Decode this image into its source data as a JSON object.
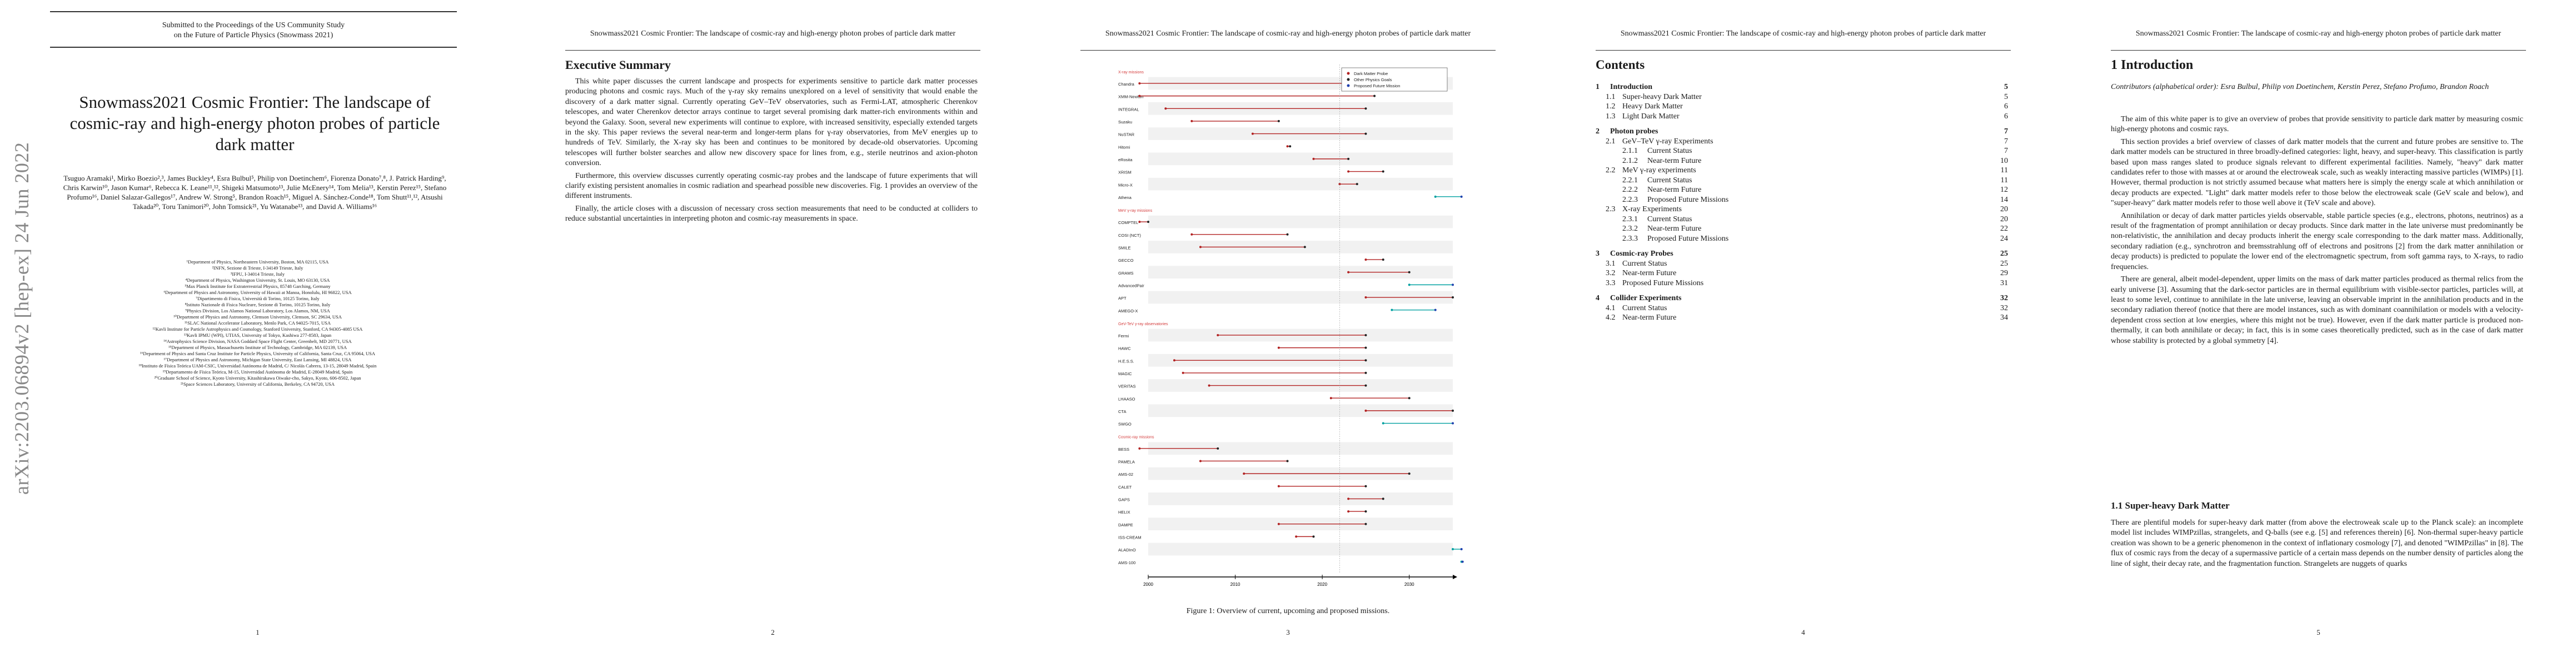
{
  "page1": {
    "arxiv_id": "arXiv:2203.06894v2  [hep-ex]  24 Jun 2022",
    "submitted_lines": [
      "Submitted to the Proceedings of the US Community Study",
      "on the Future of Particle Physics (Snowmass 2021)"
    ],
    "title": "Snowmass2021 Cosmic Frontier: The landscape of cosmic-ray and high-energy photon probes of particle dark matter",
    "authors": "Tsuguo Aramaki¹, Mirko Boezio²,³, James Buckley⁴, Esra Bulbul⁵, Philip von Doetinchem⁶, Fiorenza Donato⁷,⁸, J. Patrick Harding⁹, Chris Karwin¹⁰, Jason Kumar⁶, Rebecca K. Leane¹¹,¹², Shigeki Matsumoto¹³, Julie McEnery¹⁴, Tom Melia¹³, Kerstin Perez¹⁵, Stefano Profumo¹⁶, Daniel Salazar-Gallegos¹⁷, Andrew W. Strong⁵, Brandon Roach¹⁵, Miguel A. Sánchez-Conde¹⁸, Tom Shutt¹¹,¹², Atsushi Takada²⁰, Toru Tanimori²⁰, John Tomsick²¹, Yu Watanabe¹³, and David A. Williams¹⁶",
    "affiliations": [
      "¹Department of Physics, Northeastern University, Boston, MA 02115, USA",
      "²INFN, Sezione di Trieste, I-34149 Trieste, Italy",
      "³IFPU, I-34014 Trieste, Italy",
      "⁴Department of Physics, Washington University, St. Louis, MO 63130, USA",
      "⁵Max Planck Institute for Extraterrestrial Physics, 85748 Garching, Germany",
      "⁶Department of Physics and Astronomy, University of Hawaii at Manoa, Honolulu, HI 96822, USA",
      "⁷Dipartimento di Fisica, Università di Torino, 10125 Torino, Italy",
      "⁸Istituto Nazionale di Fisica Nucleare, Sezione di Torino, 10125 Torino, Italy",
      "⁹Physics Division, Los Alamos National Laboratory, Los Alamos, NM, USA",
      "¹⁰Department of Physics and Astronomy, Clemson University, Clemson, SC 29634, USA",
      "¹¹SLAC National Accelerator Laboratory, Menlo Park, CA 94025-7015, USA",
      "¹²Kavli Institute for Particle Astrophysics and Cosmology, Stanford University, Stanford, CA 94305-4085 USA",
      "¹³Kavli IPMU (WPI), UTIAS, University of Tokyo, Kashiwa 277-8583, Japan",
      "¹⁴Astrophysics Science Division, NASA Goddard Space Flight Center, Greenbelt, MD 20771, USA",
      "¹⁵Department of Physics, Massachusetts Institute of Technology, Cambridge, MA 02139, USA",
      "¹⁶Department of Physics and Santa Cruz Institute for Particle Physics, University of California, Santa Cruz, CA 95064, USA",
      "¹⁷Department of Physics and Astronomy, Michigan State University, East Lansing, MI 48824, USA",
      "¹⁸Instituto de Física Teórica UAM-CSIC, Universidad Autónoma de Madrid, C/ Nicolás Cabrera, 13-15, 28049 Madrid, Spain",
      "¹⁹Departamento de Física Teórica, M-15, Universidad Autónoma de Madrid, E-28049 Madrid, Spain",
      "²⁰Graduate School of Science, Kyoto University, Kitashirakawa Oiwake-cho, Sakyo, Kyoto, 606-8502, Japan",
      "²¹Space Sciences Laboratory, University of California, Berkeley, CA 94720, USA"
    ],
    "page_number": "1"
  },
  "running_head": "Snowmass2021 Cosmic Frontier: The landscape of cosmic-ray and high-energy photon probes of particle dark matter",
  "page2": {
    "heading": "Executive Summary",
    "paragraphs": [
      "This white paper discusses the current landscape and prospects for experiments sensitive to particle dark matter processes producing photons and cosmic rays. Much of the γ-ray sky remains unexplored on a level of sensitivity that would enable the discovery of a dark matter signal. Currently operating GeV–TeV observatories, such as Fermi-LAT, atmospheric Cherenkov telescopes, and water Cherenkov detector arrays continue to target several promising dark matter-rich environments within and beyond the Galaxy. Soon, several new experiments will continue to explore, with increased sensitivity, especially extended targets in the sky. This paper reviews the several near-term and longer-term plans for γ-ray observatories, from MeV energies up to hundreds of TeV. Similarly, the X-ray sky has been and continues to be monitored by decade-old observatories. Upcoming telescopes will further bolster searches and allow new discovery space for lines from, e.g., sterile neutrinos and axion-photon conversion.",
      "Furthermore, this overview discusses currently operating cosmic-ray probes and the landscape of future experiments that will clarify existing persistent anomalies in cosmic radiation and spearhead possible new discoveries. Fig. 1 provides an overview of the different instruments.",
      "Finally, the article closes with a discussion of necessary cross section measurements that need to be conducted at colliders to reduce substantial uncertainties in interpreting photon and cosmic-ray measurements in space."
    ],
    "page_number": "2"
  },
  "page3": {
    "caption": "Figure 1:   Overview of current, upcoming and proposed missions.",
    "page_number": "3"
  },
  "chart_data": {
    "type": "gantt",
    "title": "",
    "xlim": [
      2000,
      2035
    ],
    "xticks": [
      "2000",
      "2010",
      "2020",
      "2030"
    ],
    "legend": [
      "Dark Matter Probe",
      "Other Physics Goals",
      "Proposed Future Mission"
    ],
    "groups": [
      {
        "label": "X-ray missions",
        "items": [
          {
            "name": "Chandra",
            "start": 1999,
            "end": 2025
          },
          {
            "name": "XMM-Newton",
            "start": 1999,
            "end": 2026
          },
          {
            "name": "INTEGRAL",
            "start": 2002,
            "end": 2025
          },
          {
            "name": "Suzaku",
            "start": 2005,
            "end": 2015
          },
          {
            "name": "NuSTAR",
            "start": 2012,
            "end": 2025
          },
          {
            "name": "Hitomi",
            "start": 2016,
            "end": 2016.3
          },
          {
            "name": "eRosita",
            "start": 2019,
            "end": 2023
          },
          {
            "name": "XRISM",
            "start": 2023,
            "end": 2027
          },
          {
            "name": "Micro-X",
            "start": 2022,
            "end": 2024
          },
          {
            "name": "Athena",
            "start": 2033,
            "end": 2037
          }
        ]
      },
      {
        "label": "MeV γ-ray missions",
        "items": [
          {
            "name": "COMPTEL",
            "start": 1991,
            "end": 2000
          },
          {
            "name": "COSI (NCT)",
            "start": 2005,
            "end": 2016
          },
          {
            "name": "SMILE",
            "start": 2006,
            "end": 2018
          },
          {
            "name": "GECCO",
            "start": 2025,
            "end": 2027
          },
          {
            "name": "GRAMS",
            "start": 2023,
            "end": 2030
          },
          {
            "name": "AdvancedPair",
            "start": 2030,
            "end": 2035
          },
          {
            "name": "APT",
            "start": 2025,
            "end": 2035
          },
          {
            "name": "AMEGO-X",
            "start": 2028,
            "end": 2033
          }
        ]
      },
      {
        "label": "GeV-TeV γ-ray observatories",
        "items": [
          {
            "name": "Fermi",
            "start": 2008,
            "end": 2025
          },
          {
            "name": "HAWC",
            "start": 2015,
            "end": 2025
          },
          {
            "name": "H.E.S.S.",
            "start": 2003,
            "end": 2025
          },
          {
            "name": "MAGIC",
            "start": 2004,
            "end": 2025
          },
          {
            "name": "VERITAS",
            "start": 2007,
            "end": 2025
          },
          {
            "name": "LHAASO",
            "start": 2021,
            "end": 2030
          },
          {
            "name": "CTA",
            "start": 2025,
            "end": 2035
          },
          {
            "name": "SWGO",
            "start": 2027,
            "end": 2035
          }
        ]
      },
      {
        "label": "Cosmic-ray missions",
        "items": [
          {
            "name": "BESS",
            "start": 1993,
            "end": 2008
          },
          {
            "name": "PAMELA",
            "start": 2006,
            "end": 2016
          },
          {
            "name": "AMS-02",
            "start": 2011,
            "end": 2030
          },
          {
            "name": "CALET",
            "start": 2015,
            "end": 2025
          },
          {
            "name": "GAPS",
            "start": 2023,
            "end": 2027
          },
          {
            "name": "HELIX",
            "start": 2023,
            "end": 2025
          },
          {
            "name": "DAMPE",
            "start": 2015,
            "end": 2025
          },
          {
            "name": "ISS-CREAM",
            "start": 2017,
            "end": 2019
          },
          {
            "name": "ALADInO",
            "start": 2035,
            "end": 2040
          },
          {
            "name": "AMS-100",
            "start": 2039,
            "end": 2045
          }
        ]
      }
    ]
  },
  "page4": {
    "heading": "Contents",
    "entries": [
      {
        "level": 0,
        "num": "1",
        "label": "Introduction",
        "page": "5"
      },
      {
        "level": 1,
        "num": "1.1",
        "label": "Super-heavy Dark Matter",
        "page": "5"
      },
      {
        "level": 1,
        "num": "1.2",
        "label": "Heavy Dark Matter",
        "page": "6"
      },
      {
        "level": 1,
        "num": "1.3",
        "label": "Light Dark Matter",
        "page": "6"
      },
      {
        "level": 0,
        "num": "2",
        "label": "Photon probes",
        "page": "7"
      },
      {
        "level": 1,
        "num": "2.1",
        "label": "GeV–TeV γ-ray Experiments",
        "page": "7"
      },
      {
        "level": 2,
        "num": "2.1.1",
        "label": "Current Status",
        "page": "7"
      },
      {
        "level": 2,
        "num": "2.1.2",
        "label": "Near-term Future",
        "page": "10"
      },
      {
        "level": 1,
        "num": "2.2",
        "label": "MeV γ-ray experiments",
        "page": "11"
      },
      {
        "level": 2,
        "num": "2.2.1",
        "label": "Current Status",
        "page": "11"
      },
      {
        "level": 2,
        "num": "2.2.2",
        "label": "Near-term Future",
        "page": "12"
      },
      {
        "level": 2,
        "num": "2.2.3",
        "label": "Proposed Future Missions",
        "page": "14"
      },
      {
        "level": 1,
        "num": "2.3",
        "label": "X-ray Experiments",
        "page": "20"
      },
      {
        "level": 2,
        "num": "2.3.1",
        "label": "Current Status",
        "page": "20"
      },
      {
        "level": 2,
        "num": "2.3.2",
        "label": "Near-term Future",
        "page": "22"
      },
      {
        "level": 2,
        "num": "2.3.3",
        "label": "Proposed Future Missions",
        "page": "24"
      },
      {
        "level": 0,
        "num": "3",
        "label": "Cosmic-ray Probes",
        "page": "25"
      },
      {
        "level": 1,
        "num": "3.1",
        "label": "Current Status",
        "page": "25"
      },
      {
        "level": 1,
        "num": "3.2",
        "label": "Near-term Future",
        "page": "29"
      },
      {
        "level": 1,
        "num": "3.3",
        "label": "Proposed Future Missions",
        "page": "31"
      },
      {
        "level": 0,
        "num": "4",
        "label": "Collider Experiments",
        "page": "32"
      },
      {
        "level": 1,
        "num": "4.1",
        "label": "Current Status",
        "page": "32"
      },
      {
        "level": 1,
        "num": "4.2",
        "label": "Near-term Future",
        "page": "34"
      }
    ],
    "page_number": "4"
  },
  "page5": {
    "heading": "1   Introduction",
    "contributors": "Contributors (alphabetical order): Esra Bulbul, Philip von Doetinchem, Kerstin Perez, Stefano Profumo, Brandon Roach",
    "paragraphs": [
      "The aim of this white paper is to give an overview of probes that provide sensitivity to particle dark matter by measuring cosmic high-energy photons and cosmic rays.",
      "This section provides a brief overview of classes of dark matter models that the current and future probes are sensitive to. The dark matter models can be structured in three broadly-defined categories: light, heavy, and super-heavy. This classification is partly based upon mass ranges slated to produce signals relevant to different experimental facilities. Namely, \"heavy\" dark matter candidates refer to those with masses at or around the electroweak scale, such as weakly interacting massive particles (WIMPs) [1]. However, thermal production is not strictly assumed because what matters here is simply the energy scale at which annihilation or decay products are expected. \"Light\" dark matter models refer to those below the electroweak scale (GeV scale and below), and \"super-heavy\" dark matter models refer to those well above it (TeV scale and above).",
      "Annihilation or decay of dark matter particles yields observable, stable particle species (e.g., electrons, photons, neutrinos) as a result of the fragmentation of prompt annihilation or decay products. Since dark matter in the late universe must predominantly be non-relativistic, the annihilation and decay products inherit the energy scale corresponding to the dark matter mass. Additionally, secondary radiation (e.g., synchrotron and bremsstrahlung off of electrons and positrons [2] from the dark matter annihilation or decay products) is predicted to populate the lower end of the electromagnetic spectrum, from soft gamma rays, to X-rays, to radio frequencies.",
      "There are general, albeit model-dependent, upper limits on the mass of dark matter particles produced as thermal relics from the early universe [3]. Assuming that the dark-sector particles are in thermal equilibrium with visible-sector particles, particles will, at least to some level, continue to annihilate in the late universe, leaving an observable imprint in the annihilation products and in the secondary radiation thereof (notice that there are model instances, such as with dominant coannihilation or models with a velocity-dependent cross section at low energies, where this might not be true). However, even if the dark matter particle is produced non-thermally, it can both annihilate or decay; in fact, this is in some cases theoretically predicted, such as in the case of dark matter whose stability is protected by a global symmetry [4]."
    ],
    "subheading": "1.1   Super-heavy Dark Matter",
    "sub_paragraph": "There are plentiful models for super-heavy dark matter (from above the electroweak scale up to the Planck scale): an incomplete model list includes WIMPzillas, strangelets, and Q-balls (see e.g. [5] and references therein) [6]. Non-thermal super-heavy particle creation was shown to be a generic phenomenon in the context of inflationary cosmology [7], and denoted \"WIMPzillas\" in [8]. The flux of cosmic rays from the decay of a supermassive particle of a certain mass depends on the number density of particles along the line of sight, their decay rate, and the fragmentation function. Strangelets are nuggets of quarks",
    "page_number": "5"
  },
  "colors": {
    "dm_probe": "#b22222",
    "other_goals": "#222222",
    "future": "#1e3fae",
    "future_line": "#00a0a0",
    "group_label": "#d43c3c"
  }
}
